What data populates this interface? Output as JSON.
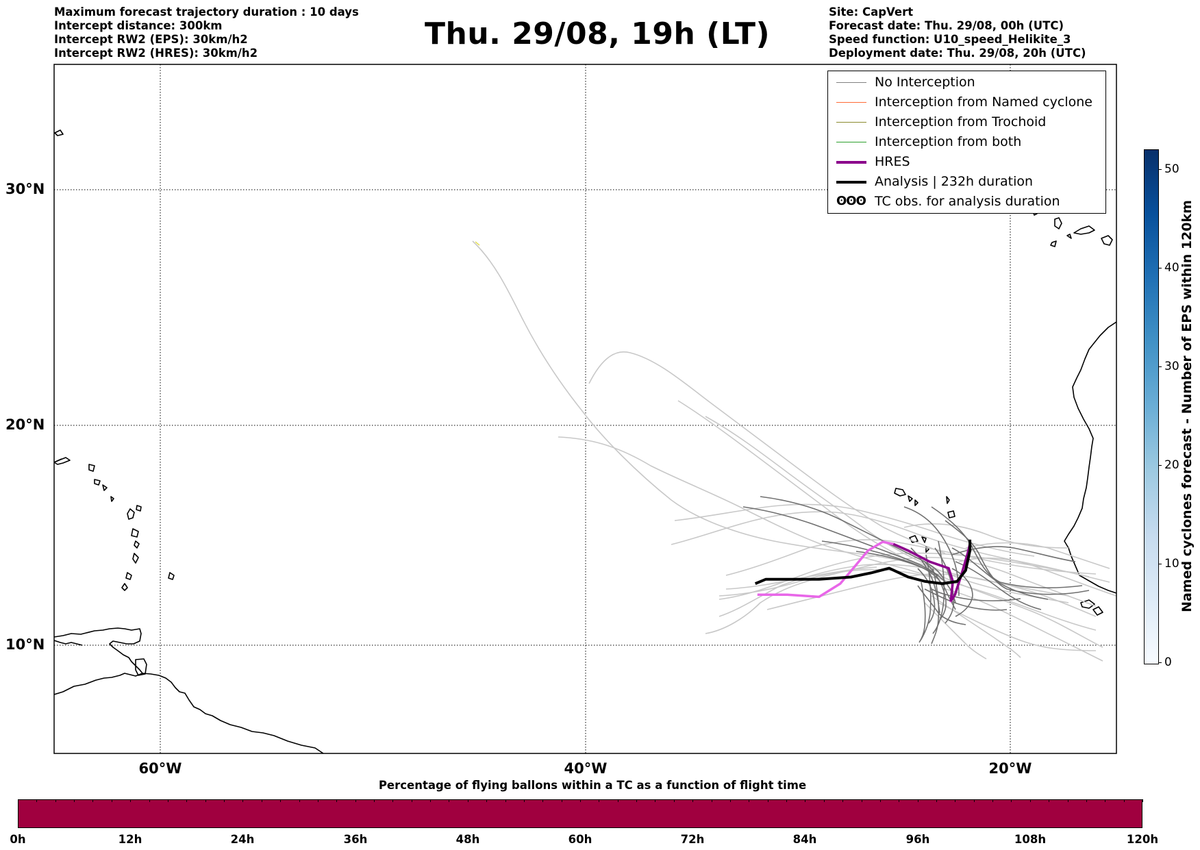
{
  "header": {
    "info_left": [
      "Maximum forecast trajectory duration : 10 days",
      "Intercept distance: 300km",
      "Intercept RW2 (EPS):  30km/h2",
      "Intercept RW2 (HRES): 30km/h2"
    ],
    "title": "Thu. 29/08, 19h (LT)",
    "info_right": [
      "Site: CapVert",
      "Forecast date: Thu. 29/08, 00h (UTC)",
      "Speed function: U10_speed_Helikite_3",
      "Deployment date: Thu. 29/08, 20h (UTC)"
    ]
  },
  "map": {
    "lon_range": [
      -65,
      -15
    ],
    "lat_range": [
      5.5,
      35
    ],
    "lat_labels": [
      "30°N",
      "20°N",
      "10°N"
    ],
    "lon_labels": [
      "60°W",
      "40°W",
      "20°W"
    ],
    "gridlines": true
  },
  "legend": {
    "items": [
      {
        "label": "No Interception",
        "color": "#808080"
      },
      {
        "label": "Interception from Named cyclone",
        "color": "#ff6b35"
      },
      {
        "label": "Interception from Trochoid",
        "color": "#8b8b2e"
      },
      {
        "label": "Interception from both",
        "color": "#2ca02c"
      },
      {
        "label": "HRES",
        "color": "#8b008b"
      },
      {
        "label": "Analysis | 232h duration",
        "color": "#000000"
      }
    ],
    "tc_symbol": "ʘʘʘ",
    "tc_label": "TC obs. for analysis duration"
  },
  "colorbar_right": {
    "title": "Named cyclones forecast - Number of EPS within 120km",
    "ticks": [
      "0",
      "10",
      "20",
      "30",
      "40",
      "50"
    ],
    "range": [
      0,
      52
    ]
  },
  "colorbar_bottom": {
    "title": "Percentage of flying ballons within a TC as a function of flight time",
    "ticks": [
      "0h",
      "12h",
      "24h",
      "36h",
      "48h",
      "60h",
      "72h",
      "84h",
      "96h",
      "108h",
      "120h"
    ],
    "fill_color": "#a0003f"
  },
  "tracks": {
    "hres": [
      [
        -31.9,
        12.3
      ],
      [
        -30.5,
        12.3
      ],
      [
        -29.0,
        12.2
      ],
      [
        -28.0,
        12.8
      ],
      [
        -27.3,
        13.6
      ],
      [
        -26.7,
        14.3
      ],
      [
        -26.0,
        14.7
      ],
      [
        -25.5,
        14.6
      ],
      [
        -24.8,
        14.3
      ],
      [
        -23.8,
        13.8
      ],
      [
        -22.9,
        13.5
      ],
      [
        -22.7,
        12.9
      ],
      [
        -22.8,
        12.0
      ],
      [
        -22.6,
        12.3
      ],
      [
        -22.3,
        13.2
      ],
      [
        -22.0,
        14.2
      ],
      [
        -21.9,
        14.6
      ]
    ],
    "analysis": [
      [
        -32.0,
        12.8
      ],
      [
        -31.5,
        13.0
      ],
      [
        -30.5,
        13.0
      ],
      [
        -29.0,
        13.0
      ],
      [
        -27.5,
        13.1
      ],
      [
        -26.5,
        13.3
      ],
      [
        -25.7,
        13.5
      ],
      [
        -24.8,
        13.1
      ],
      [
        -24.0,
        12.9
      ],
      [
        -23.2,
        12.8
      ],
      [
        -22.5,
        12.9
      ],
      [
        -22.1,
        13.4
      ],
      [
        -21.9,
        14.3
      ],
      [
        -21.9,
        14.8
      ]
    ]
  }
}
